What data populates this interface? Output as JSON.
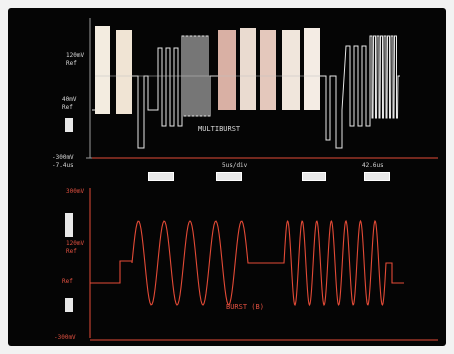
{
  "top_trace": {
    "title": "MULTIBURST",
    "scale_top": "120mV",
    "scale_ref_1": "Ref",
    "scale_mid_1": "40mV",
    "scale_mid_2": "Ref",
    "scale_bottom": "-300mV",
    "color": "#e8e8e8"
  },
  "timebase": {
    "start": "-7.4us",
    "div": "5us/div",
    "end": "42.6us"
  },
  "bottom_trace": {
    "title": "BURST (B)",
    "scale_top": "300mV",
    "scale_mid": "120mV",
    "scale_ref": "Ref",
    "scale_ref_2": "Ref",
    "scale_bottom": "-300mV",
    "color": "#e34a36"
  },
  "markers": [
    "",
    "",
    "",
    ""
  ]
}
